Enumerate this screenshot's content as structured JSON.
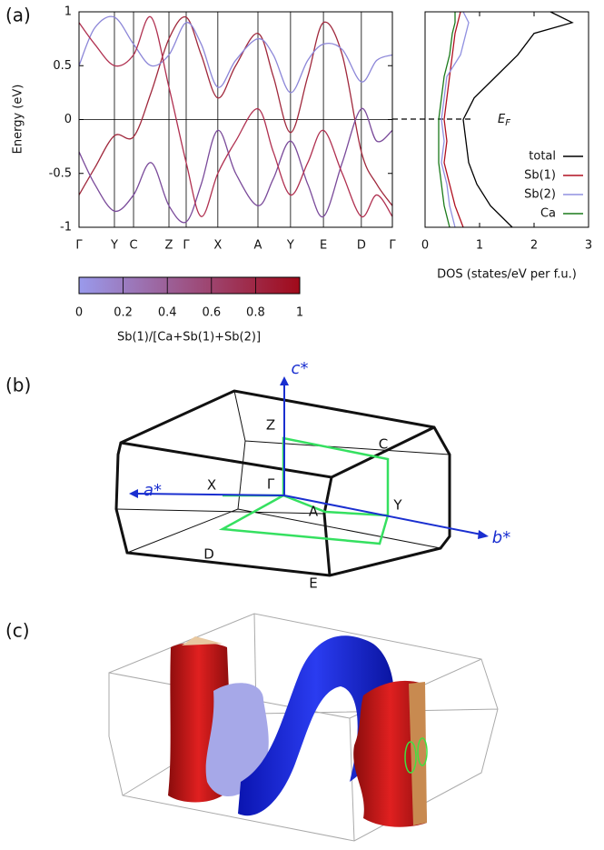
{
  "chart_data": [
    {
      "type": "line",
      "panel_label": "(a)",
      "ylabel": "Energy (eV)",
      "xlim": [
        0,
        1
      ],
      "ylim": [
        -1,
        1
      ],
      "xticks": [
        {
          "value": 0,
          "label": "Γ"
        },
        {
          "value": 0.113,
          "label": "Y"
        },
        {
          "value": 0.174,
          "label": "C"
        },
        {
          "value": 0.287,
          "label": "Z"
        },
        {
          "value": 0.342,
          "label": "Γ"
        },
        {
          "value": 0.443,
          "label": "X"
        },
        {
          "value": 0.571,
          "label": "A"
        },
        {
          "value": 0.675,
          "label": "Y"
        },
        {
          "value": 0.78,
          "label": "E"
        },
        {
          "value": 0.901,
          "label": "D"
        },
        {
          "value": 1,
          "label": "Γ"
        }
      ],
      "yticks": [
        -1,
        -0.5,
        0,
        0.5,
        1
      ],
      "x": [
        0,
        0.05,
        0.113,
        0.174,
        0.23,
        0.287,
        0.342,
        0.39,
        0.443,
        0.5,
        0.571,
        0.62,
        0.675,
        0.73,
        0.78,
        0.84,
        0.901,
        0.95,
        1
      ],
      "series": [
        {
          "color": "#a0283c",
          "values": [
            -0.7,
            -0.45,
            -0.15,
            -0.16,
            0.25,
            0.75,
            0.95,
            0.6,
            0.2,
            0.5,
            0.8,
            0.4,
            -0.12,
            0.4,
            0.9,
            0.6,
            -0.3,
            -0.6,
            -0.8
          ]
        },
        {
          "color": "#8c86d8",
          "values": [
            0.5,
            0.85,
            0.95,
            0.7,
            0.5,
            0.6,
            0.9,
            0.7,
            0.3,
            0.55,
            0.75,
            0.6,
            0.25,
            0.55,
            0.7,
            0.65,
            0.35,
            0.55,
            0.6
          ]
        },
        {
          "color": "#7a4a9a",
          "values": [
            -0.3,
            -0.6,
            -0.85,
            -0.7,
            -0.4,
            -0.8,
            -0.95,
            -0.6,
            -0.1,
            -0.5,
            -0.8,
            -0.55,
            -0.2,
            -0.6,
            -0.9,
            -0.4,
            0.1,
            -0.2,
            -0.1
          ]
        },
        {
          "color": "#b03050",
          "values": [
            0.9,
            0.7,
            0.5,
            0.6,
            0.95,
            0.3,
            -0.4,
            -0.9,
            -0.5,
            -0.2,
            0.1,
            -0.3,
            -0.7,
            -0.4,
            -0.1,
            -0.5,
            -0.9,
            -0.7,
            -0.9
          ]
        }
      ],
      "colorbar": {
        "label": "Sb(1)/[Ca+Sb(1)+Sb(2)]",
        "lim": [
          0,
          1
        ],
        "ticks": [
          0,
          0.2,
          0.4,
          0.6,
          0.8,
          1
        ],
        "colors": [
          "#9a9aec",
          "#a00a1a"
        ]
      },
      "fermi_label": {
        "main": "E",
        "sub": "F"
      }
    },
    {
      "type": "line",
      "orientation": "horizontal",
      "xlabel": "DOS (states/eV per f.u.)",
      "xlim": [
        0,
        3
      ],
      "xticks": [
        0,
        1,
        2,
        3
      ],
      "ylim": [
        -1,
        1
      ],
      "y": [
        -1,
        -0.8,
        -0.6,
        -0.4,
        -0.2,
        0,
        0.2,
        0.4,
        0.6,
        0.8,
        0.9,
        1
      ],
      "series": [
        {
          "name": "total",
          "color": "#000000",
          "values": [
            1.6,
            1.2,
            0.95,
            0.8,
            0.75,
            0.7,
            0.9,
            1.3,
            1.7,
            2.0,
            2.7,
            2.3
          ]
        },
        {
          "name": "Sb(1)",
          "color": "#b01020",
          "values": [
            0.7,
            0.55,
            0.45,
            0.35,
            0.4,
            0.35,
            0.4,
            0.45,
            0.5,
            0.55,
            0.6,
            0.65
          ]
        },
        {
          "name": "Sb(2)",
          "color": "#9090e0",
          "values": [
            0.55,
            0.45,
            0.4,
            0.3,
            0.35,
            0.3,
            0.35,
            0.4,
            0.65,
            0.75,
            0.8,
            0.7
          ]
        },
        {
          "name": "Ca",
          "color": "#1a7a1a",
          "values": [
            0.45,
            0.35,
            0.3,
            0.25,
            0.25,
            0.25,
            0.3,
            0.35,
            0.45,
            0.5,
            0.55,
            0.55
          ]
        }
      ]
    }
  ],
  "brillouin_zone": {
    "panel_label": "(b)",
    "axes": [
      "c*",
      "a*",
      "b*"
    ],
    "points": [
      "Z",
      "C",
      "X",
      "Γ",
      "A",
      "Y",
      "D",
      "E"
    ]
  },
  "fermi_surface": {
    "panel_label": "(c)"
  }
}
